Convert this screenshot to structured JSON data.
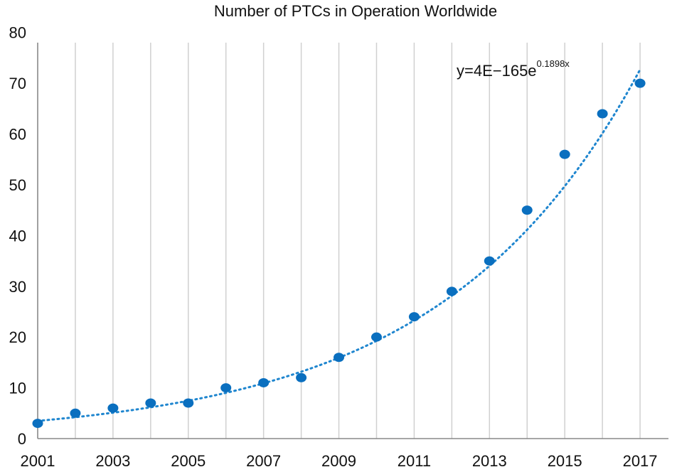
{
  "chart_data": {
    "type": "scatter",
    "title": "Number of PTCs in Operation Worldwide",
    "xlabel": "",
    "ylabel": "",
    "x": [
      2001,
      2002,
      2003,
      2004,
      2005,
      2006,
      2007,
      2008,
      2009,
      2010,
      2011,
      2012,
      2013,
      2014,
      2015,
      2016,
      2017
    ],
    "series": [
      {
        "values": [
          3,
          5,
          6,
          7,
          7,
          10,
          11,
          12,
          16,
          20,
          24,
          29,
          35,
          45,
          56,
          64,
          70
        ]
      }
    ],
    "xlim": [
      2001,
      2018
    ],
    "ylim": [
      0,
      80
    ],
    "xticks": [
      2001,
      2003,
      2005,
      2007,
      2009,
      2011,
      2013,
      2015,
      2017
    ],
    "yticks": [
      0,
      10,
      20,
      30,
      40,
      50,
      60,
      70,
      80
    ],
    "trendline": {
      "type": "exponential",
      "label_base": "y=4E−165e",
      "label_exponent": "0.1898x",
      "a": 4e-165,
      "b": 0.1898,
      "style": "dotted"
    },
    "grid": "vertical",
    "legend": "none",
    "colors": {
      "marker": "#0a6fbf",
      "trendline": "#1f86cf"
    }
  }
}
